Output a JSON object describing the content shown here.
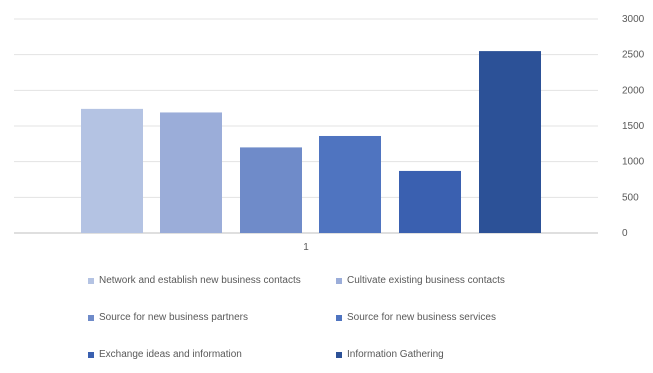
{
  "chart_data": {
    "type": "bar",
    "title": "",
    "xlabel": "",
    "ylabel": "",
    "categories": [
      "1"
    ],
    "ylim": [
      0,
      3000
    ],
    "yticks": [
      "0",
      "500",
      "1000",
      "1500",
      "2000",
      "2500",
      "3000"
    ],
    "grid": true,
    "legend_position": "bottom",
    "series": [
      {
        "name": "Network and establish new business contacts",
        "values": [
          1740
        ],
        "color": "#b4c3e3"
      },
      {
        "name": "Cultivate existing business contacts",
        "values": [
          1690
        ],
        "color": "#9badd9"
      },
      {
        "name": "Source for new business partners",
        "values": [
          1200
        ],
        "color": "#6f8bc9"
      },
      {
        "name": "Source for new business services",
        "values": [
          1360
        ],
        "color": "#4f74c0"
      },
      {
        "name": "Exchange ideas and information",
        "values": [
          870
        ],
        "color": "#3a60b0"
      },
      {
        "name": "Information Gathering",
        "values": [
          2550
        ],
        "color": "#2c5197"
      }
    ]
  }
}
